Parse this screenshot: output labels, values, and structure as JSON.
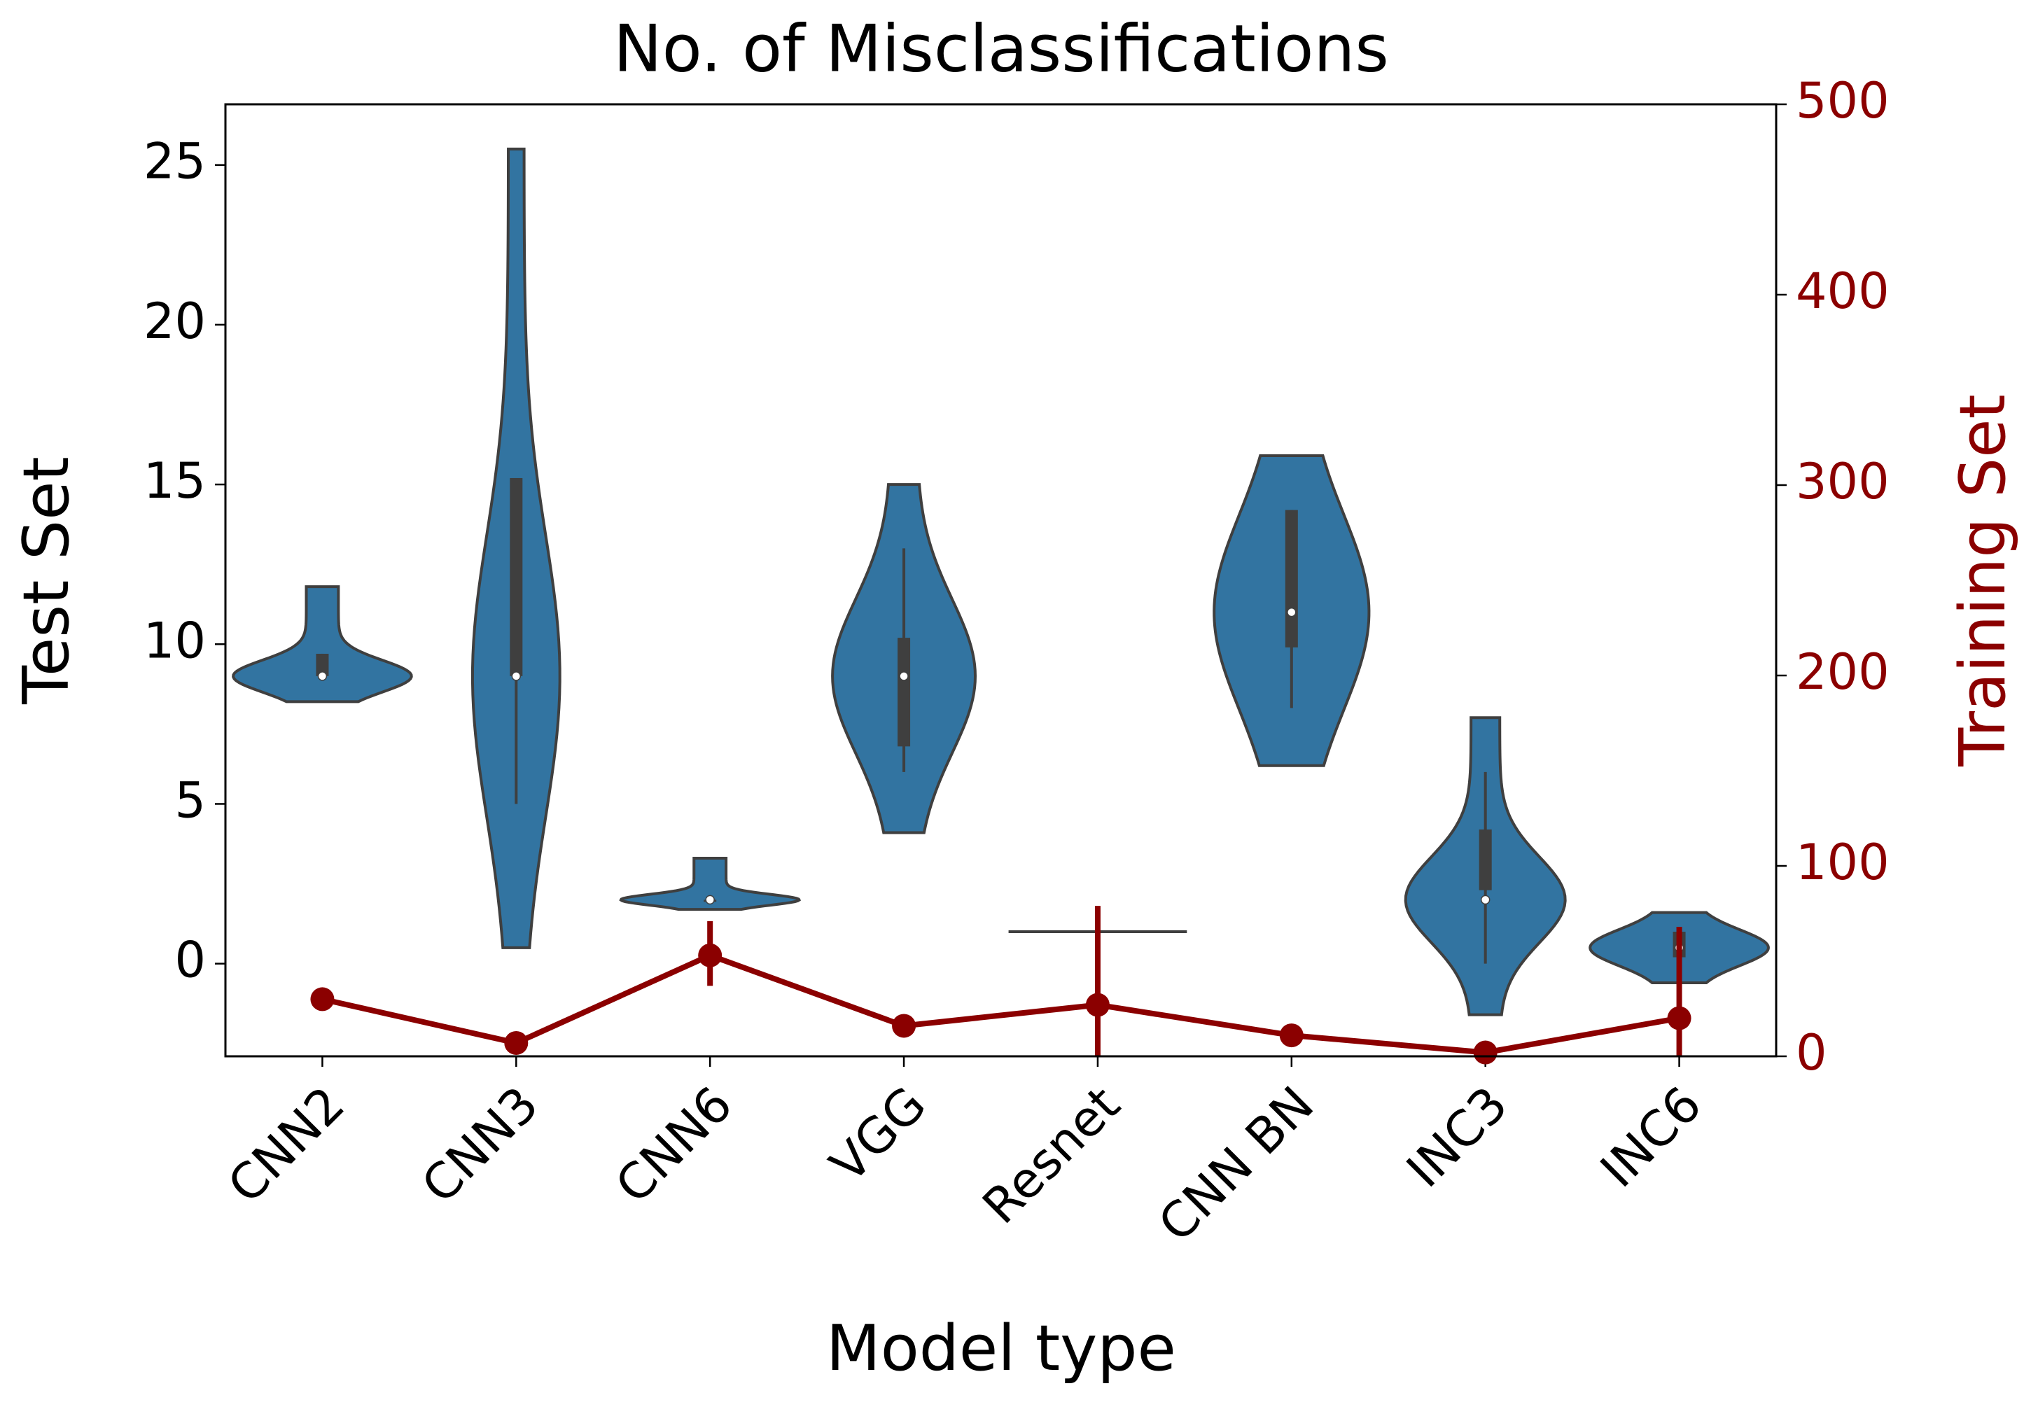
{
  "chart_data": {
    "type": "violin",
    "title": "No. of Misclassifications",
    "xlabel": "Model type",
    "ylabel": "Test Set",
    "y2label": "Training Set",
    "categories": [
      "CNN2",
      "CNN3",
      "CNN6",
      "VGG",
      "Resnet",
      "CNN BN",
      "INC3",
      "INC6"
    ],
    "violin": {
      "color": "#3274a1",
      "edgecolor": "#3f3f3f",
      "min": [
        8.2,
        0.5,
        1.7,
        4.1,
        1,
        6.2,
        -1.6,
        -0.6
      ],
      "whisker_low": [
        9,
        5,
        2,
        6,
        1,
        8,
        0,
        0.2
      ],
      "q1": [
        9,
        9,
        2,
        6.8,
        1,
        9.9,
        2.3,
        0.2
      ],
      "median": [
        9,
        9,
        2,
        9,
        1,
        11,
        2,
        0.5
      ],
      "q3": [
        9.7,
        15.2,
        2,
        10.2,
        1,
        14.2,
        4.2,
        1
      ],
      "whisker_high": [
        9.7,
        15.2,
        2,
        13,
        1,
        14.2,
        6,
        1
      ],
      "max": [
        11.8,
        25.5,
        3.3,
        15,
        1,
        15.9,
        7.7,
        1.6
      ]
    },
    "series": [
      {
        "type": "point",
        "axis": "y2",
        "color": "#8b0000",
        "values": [
          30,
          7,
          53,
          16,
          27,
          11,
          2,
          20
        ],
        "ci": [
          null,
          null,
          [
            37,
            71
          ],
          null,
          [
            0,
            79
          ],
          null,
          null,
          [
            0,
            68
          ]
        ]
      }
    ],
    "ylim": [
      -2.9,
      26.9
    ],
    "yticks": [
      0,
      5,
      10,
      15,
      20,
      25
    ],
    "y2lim": [
      0,
      500
    ],
    "y2ticks": [
      0,
      100,
      200,
      300,
      400,
      500
    ],
    "y2color": "#8b0000"
  }
}
